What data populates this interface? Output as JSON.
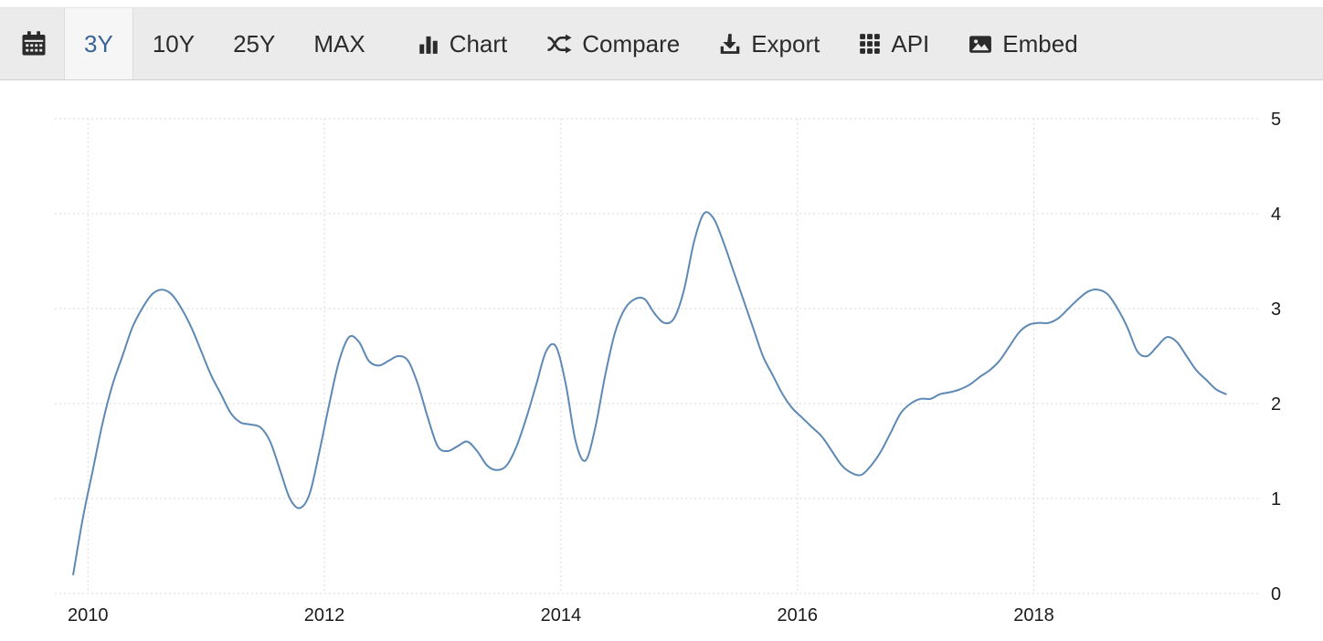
{
  "toolbar": {
    "calendar": {
      "icon": "calendar-icon"
    },
    "ranges": [
      {
        "label": "3Y",
        "selected": true
      },
      {
        "label": "10Y",
        "selected": false
      },
      {
        "label": "25Y",
        "selected": false
      },
      {
        "label": "MAX",
        "selected": false
      }
    ],
    "actions": [
      {
        "label": "Chart",
        "icon": "bar-chart-icon"
      },
      {
        "label": "Compare",
        "icon": "shuffle-icon"
      },
      {
        "label": "Export",
        "icon": "download-icon"
      },
      {
        "label": "API",
        "icon": "grid-icon"
      },
      {
        "label": "Embed",
        "icon": "image-icon"
      }
    ]
  },
  "colors": {
    "line": "#5d89b4",
    "grid": "#dadada",
    "toolbar_bg": "#ebebeb",
    "selected_bg": "#f6f6f6",
    "selected_text": "#3a6397",
    "icon_text": "#2b2b2b",
    "tick_text": "#1b1b1b"
  },
  "chart_data": {
    "type": "line",
    "title": "",
    "xlabel": "",
    "ylabel": "",
    "legend": null,
    "grid": "dotted",
    "y_axis_side": "right",
    "xlim": [
      2009.72,
      2019.92
    ],
    "ylim": [
      0,
      5
    ],
    "x_ticks": [
      2010,
      2012,
      2014,
      2016,
      2018
    ],
    "y_ticks": [
      0,
      1,
      2,
      3,
      4,
      5
    ],
    "x_start": 2009.875,
    "x_step_months": 1,
    "values": [
      0.2,
      0.8,
      1.3,
      1.8,
      2.2,
      2.5,
      2.8,
      3.0,
      3.15,
      3.2,
      3.15,
      3.0,
      2.8,
      2.55,
      2.3,
      2.1,
      1.9,
      1.8,
      1.78,
      1.75,
      1.6,
      1.3,
      1.0,
      0.9,
      1.05,
      1.5,
      2.0,
      2.45,
      2.7,
      2.65,
      2.45,
      2.4,
      2.45,
      2.5,
      2.45,
      2.2,
      1.85,
      1.55,
      1.5,
      1.55,
      1.6,
      1.5,
      1.35,
      1.3,
      1.35,
      1.55,
      1.85,
      2.2,
      2.55,
      2.6,
      2.2,
      1.6,
      1.4,
      1.75,
      2.3,
      2.75,
      3.0,
      3.1,
      3.1,
      2.95,
      2.85,
      2.9,
      3.2,
      3.7,
      4.0,
      3.95,
      3.7,
      3.4,
      3.1,
      2.8,
      2.5,
      2.3,
      2.1,
      1.95,
      1.85,
      1.75,
      1.65,
      1.5,
      1.35,
      1.27,
      1.25,
      1.35,
      1.5,
      1.7,
      1.9,
      2.0,
      2.05,
      2.05,
      2.1,
      2.12,
      2.15,
      2.2,
      2.28,
      2.35,
      2.45,
      2.6,
      2.75,
      2.83,
      2.85,
      2.85,
      2.9,
      3.0,
      3.1,
      3.18,
      3.2,
      3.15,
      3.0,
      2.8,
      2.55,
      2.5,
      2.6,
      2.7,
      2.65,
      2.5,
      2.35,
      2.25,
      2.15,
      2.1
    ]
  }
}
